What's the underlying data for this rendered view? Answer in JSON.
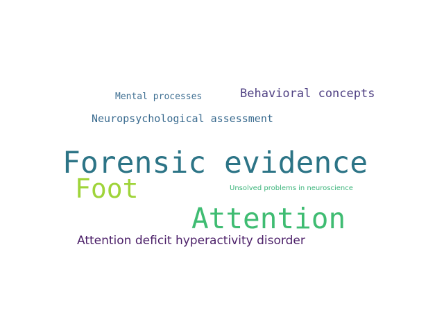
{
  "words": [
    {
      "id": "mental",
      "text": "Mental processes",
      "color": "#3f6f92"
    },
    {
      "id": "behavioral",
      "text": "Behavioral concepts",
      "color": "#4e3f82"
    },
    {
      "id": "neuro",
      "text": "Neuropsychological assessment",
      "color": "#3a6b8f"
    },
    {
      "id": "forensic",
      "text": "Forensic evidence",
      "color": "#2c7486"
    },
    {
      "id": "foot",
      "text": "Foot",
      "color": "#9fd43a"
    },
    {
      "id": "unsolved",
      "text": "Unsolved problems in neuroscience",
      "color": "#3bb47a"
    },
    {
      "id": "attention",
      "text": "Attention",
      "color": "#3fbc72"
    },
    {
      "id": "adhd",
      "text": "Attention deficit hyperactivity disorder",
      "color": "#4b1f68"
    }
  ]
}
